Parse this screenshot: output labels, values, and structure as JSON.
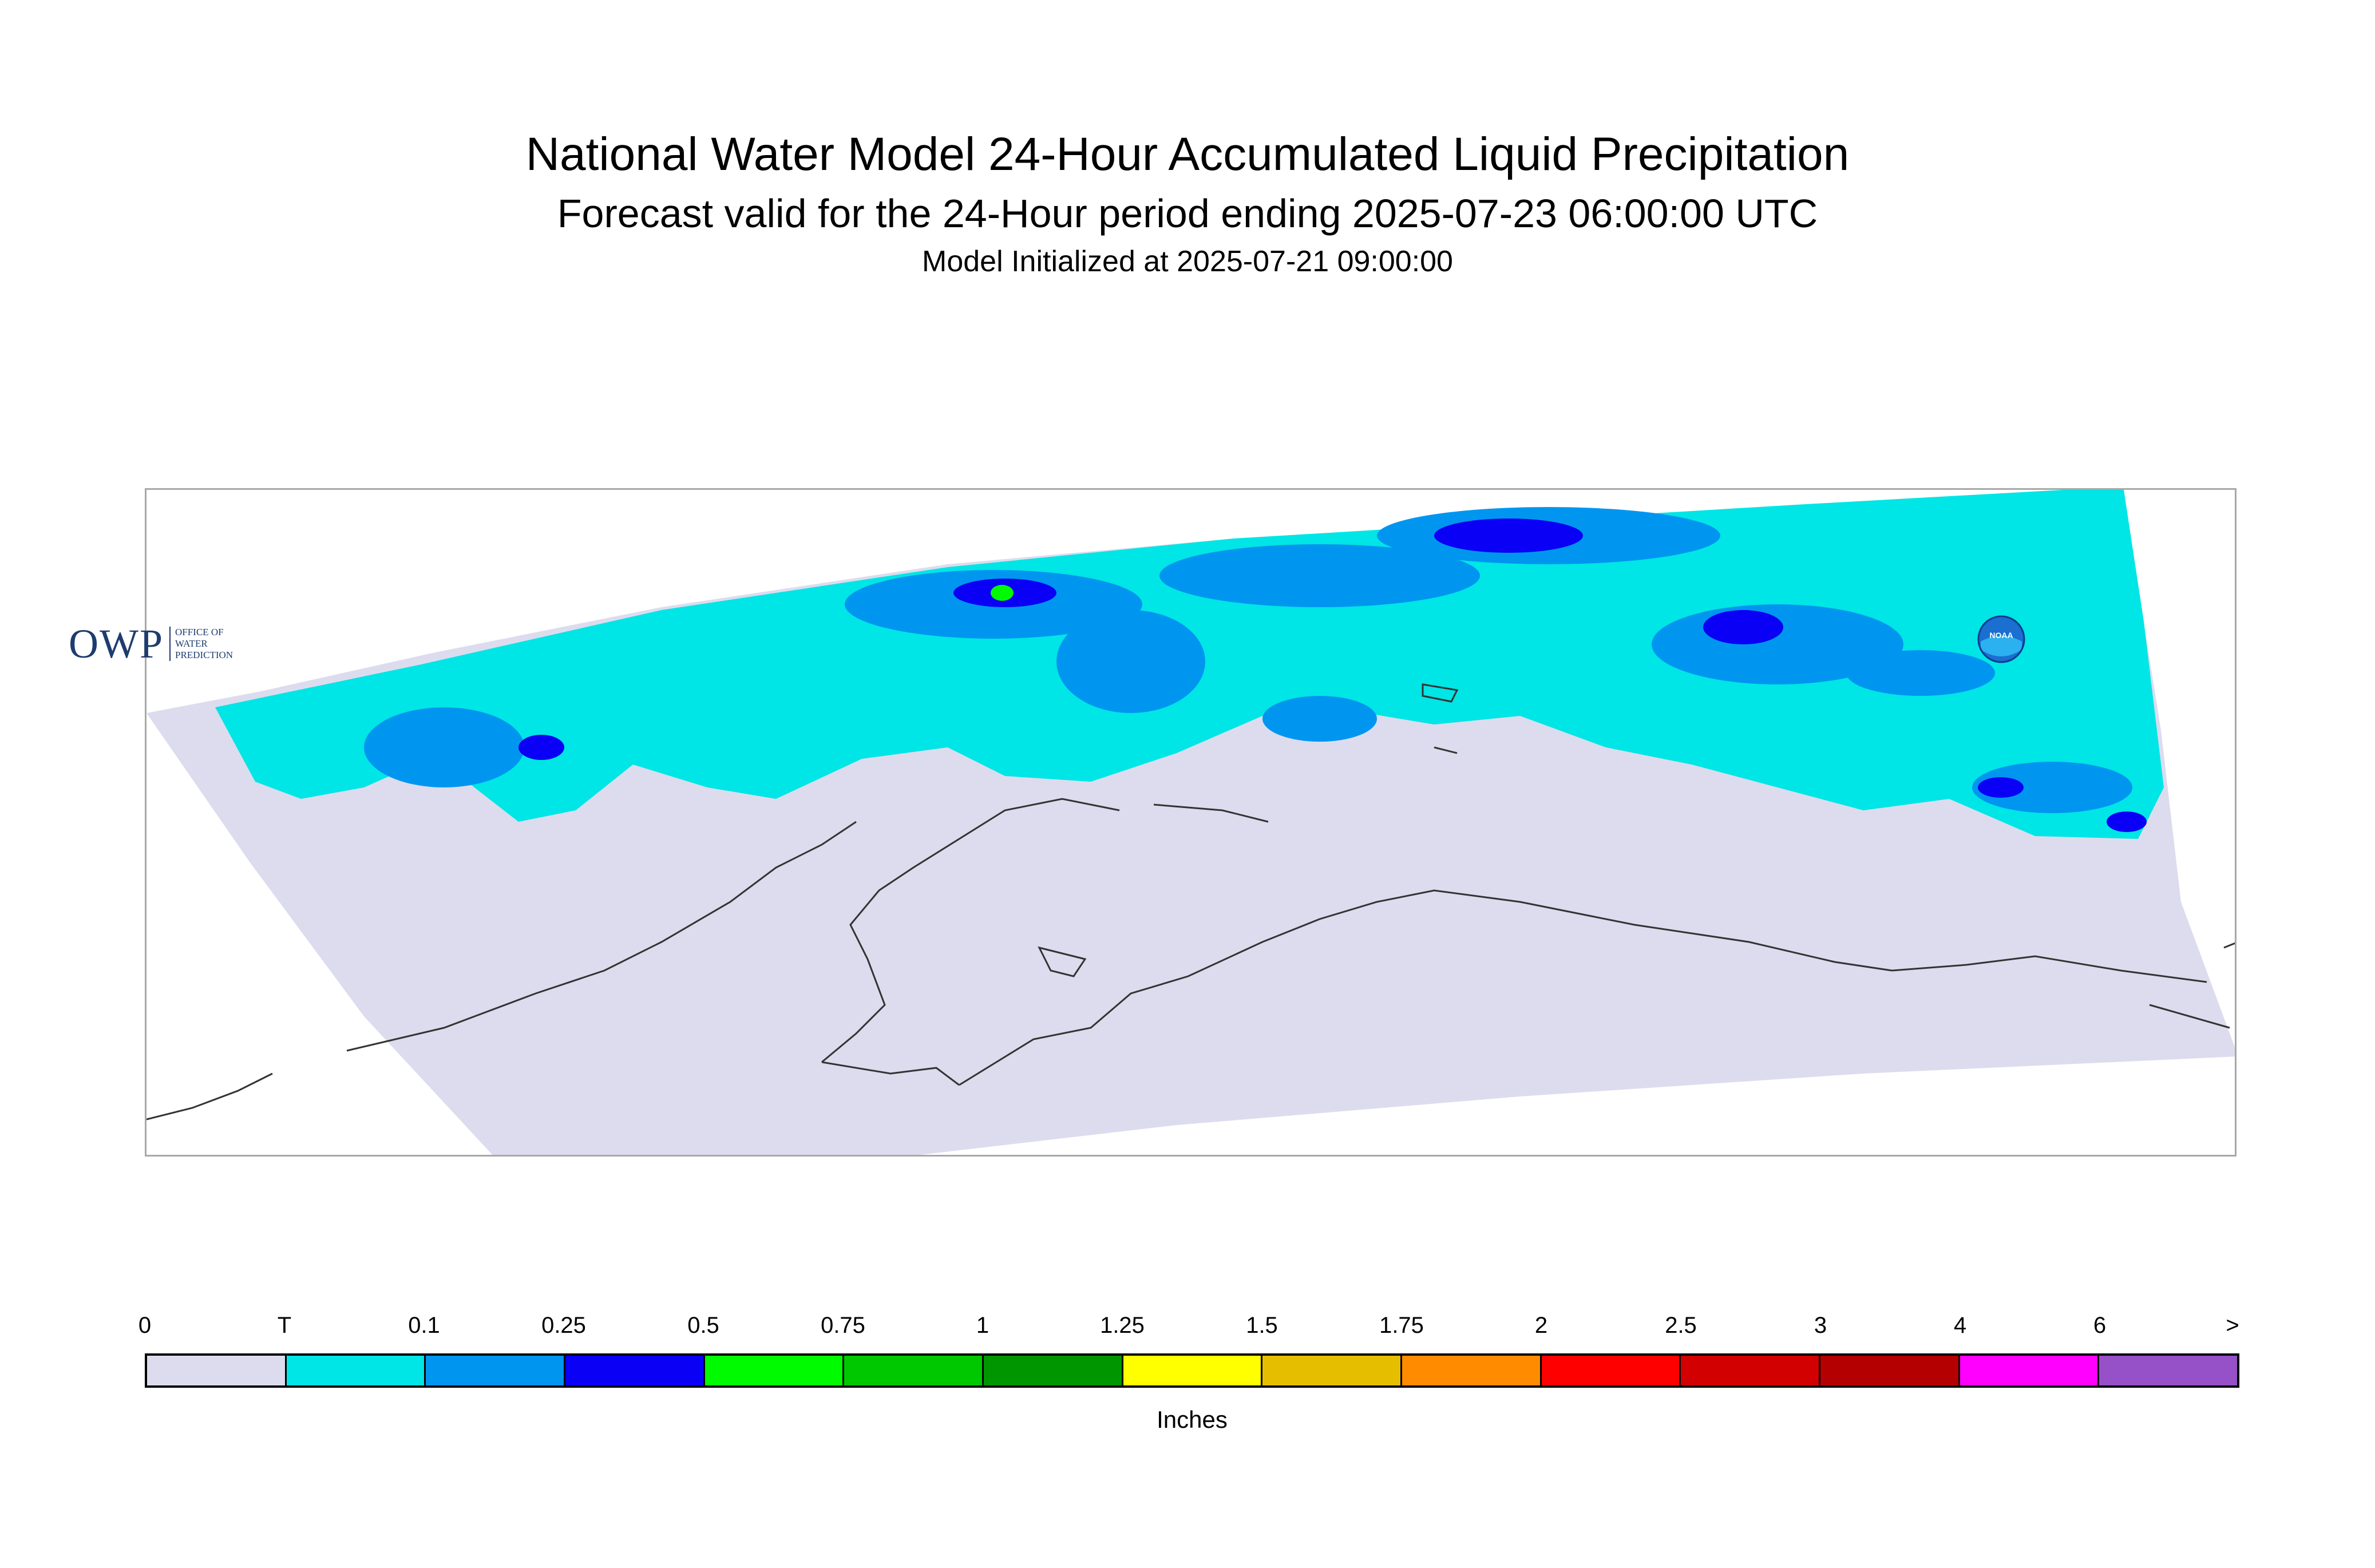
{
  "title": "National Water Model 24-Hour Accumulated Liquid Precipitation",
  "subtitle": "Forecast valid for the 24-Hour period ending 2025-07-23 06:00:00 UTC",
  "init_time": "Model Initialized at 2025-07-21 09:00:00",
  "logos": {
    "owp_text": "OWP",
    "owp_sub": [
      "OFFICE OF",
      "WATER",
      "PREDICTION"
    ],
    "noaa_text": "NOAA"
  },
  "legend": {
    "unit": "Inches",
    "labels": [
      "0",
      "T",
      "0.1",
      "0.25",
      "0.5",
      "0.75",
      "1",
      "1.25",
      "1.5",
      "1.75",
      "2",
      "2.5",
      "3",
      "4",
      "6",
      ">"
    ],
    "colors": [
      "#dcdcee",
      "#00e5e5",
      "#0096f0",
      "#0a00f5",
      "#00fa00",
      "#00c800",
      "#009600",
      "#ffff00",
      "#e6be00",
      "#ff8c00",
      "#ff0000",
      "#d20000",
      "#b40000",
      "#ff00ff",
      "#9650c8"
    ]
  },
  "map_colors": {
    "no_precip": "#dcdcee",
    "trace": "#00e5e5",
    "light": "#0096f0",
    "moderate": "#0a00f5",
    "heavy": "#00fa00",
    "coastline": "#333333"
  }
}
